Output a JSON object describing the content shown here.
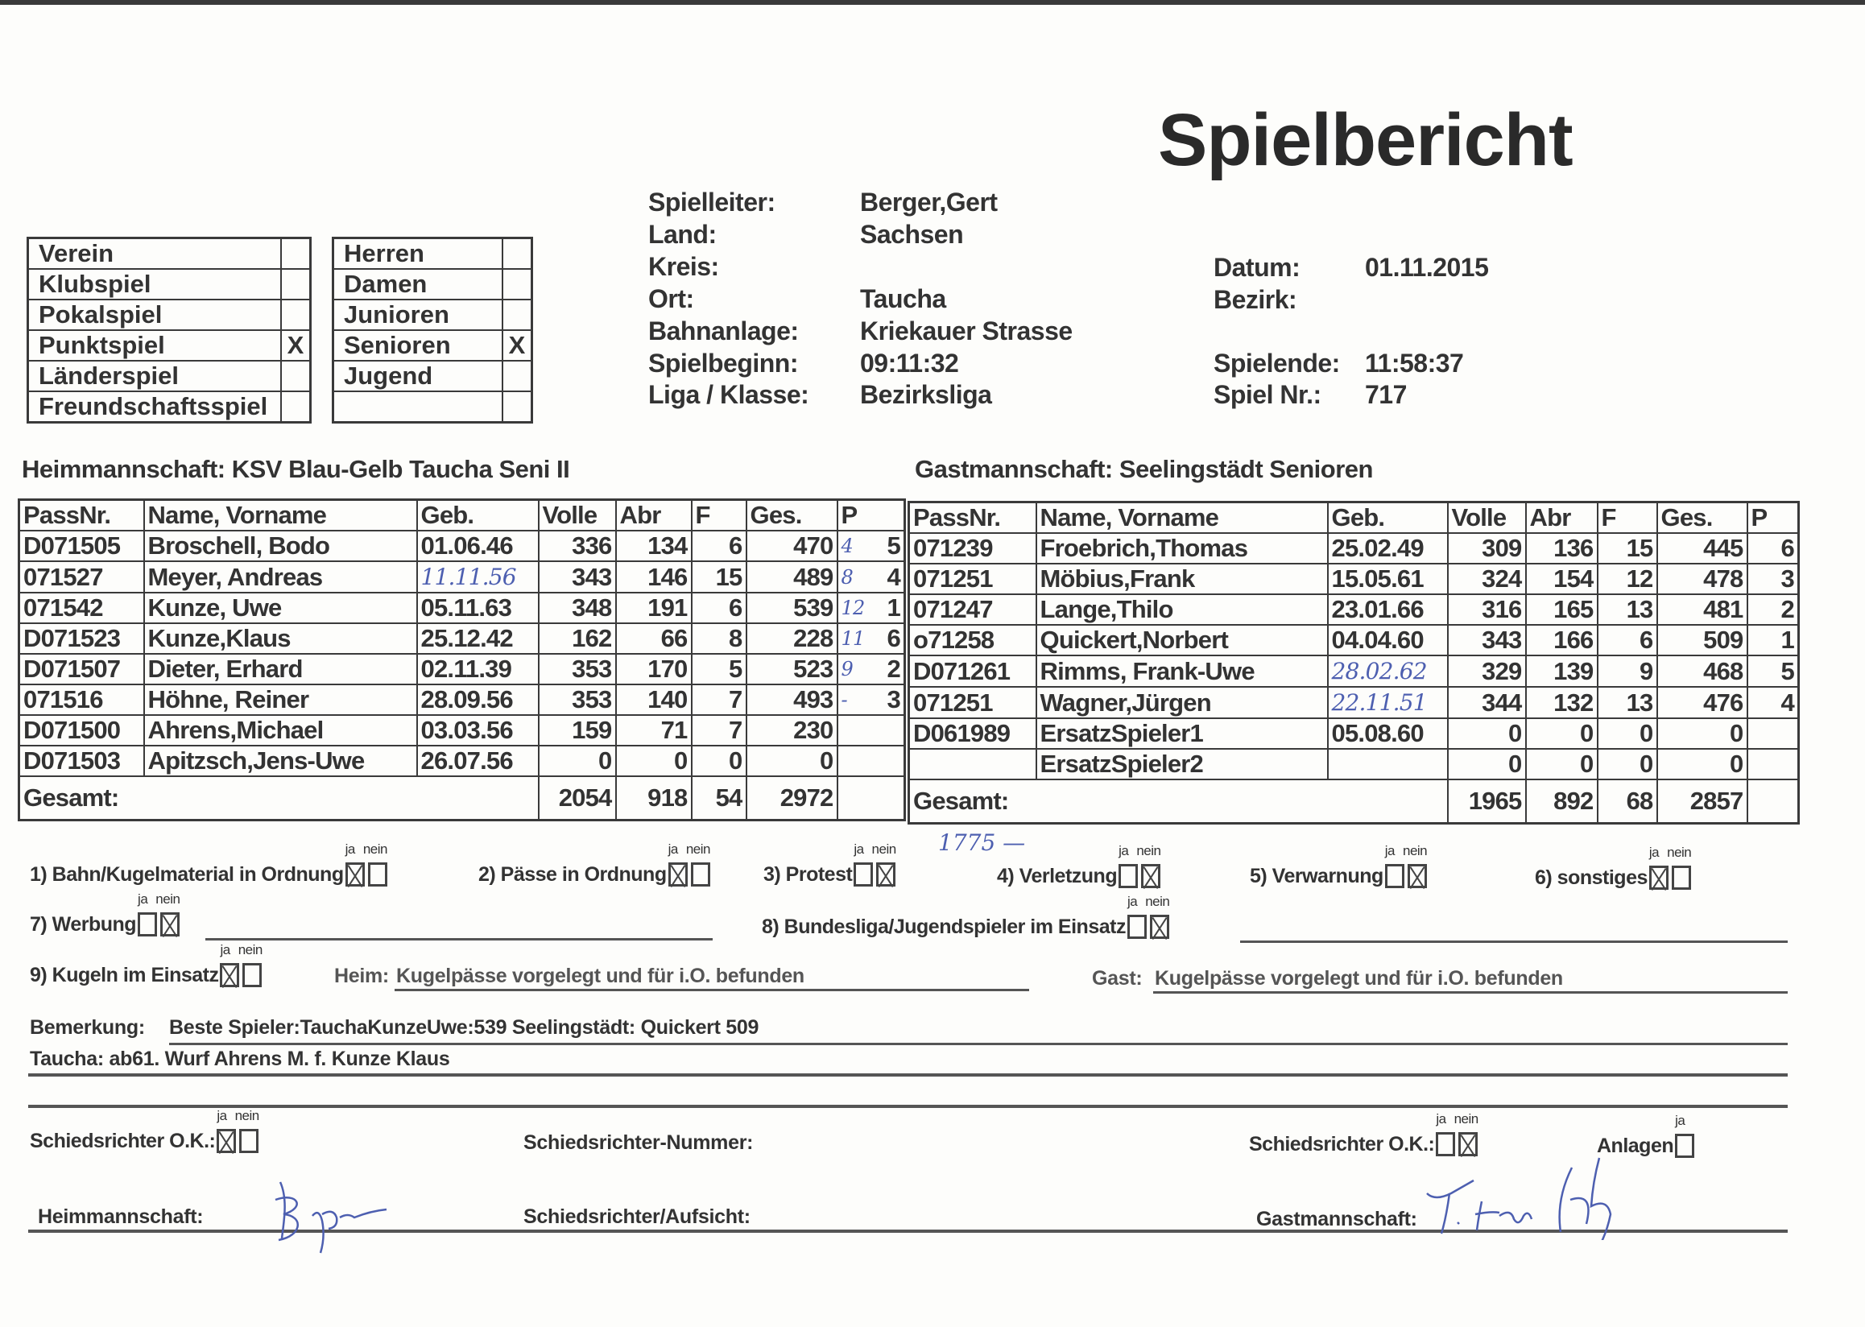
{
  "title": "Spielbericht",
  "info_left": [
    {
      "label": "Spielleiter:",
      "value": "Berger,Gert"
    },
    {
      "label": "Land:",
      "value": "Sachsen"
    },
    {
      "label": "Kreis:",
      "value": ""
    },
    {
      "label": "Ort:",
      "value": "Taucha"
    },
    {
      "label": "Bahnanlage:",
      "value": "Kriekauer Strasse"
    },
    {
      "label": "Spielbeginn:",
      "value": "09:11:32"
    },
    {
      "label": "Liga / Klasse:",
      "value": "Bezirksliga"
    }
  ],
  "info_right": {
    "datum_label": "Datum:",
    "datum": "01.11.2015",
    "bezirk_label": "Bezirk:",
    "bezirk": "",
    "spielende_label": "Spielende:",
    "spielende": "11:58:37",
    "spielnr_label": "Spiel Nr.:",
    "spielnr": "717"
  },
  "type_box": [
    {
      "label": "Verein",
      "mark": ""
    },
    {
      "label": "Klubspiel",
      "mark": ""
    },
    {
      "label": "Pokalspiel",
      "mark": ""
    },
    {
      "label": "Punktspiel",
      "mark": "X"
    },
    {
      "label": "Länderspiel",
      "mark": ""
    },
    {
      "label": "Freundschaftsspiel",
      "mark": ""
    }
  ],
  "class_box": [
    {
      "label": "Herren",
      "mark": ""
    },
    {
      "label": "Damen",
      "mark": ""
    },
    {
      "label": "Junioren",
      "mark": ""
    },
    {
      "label": "Senioren",
      "mark": "X"
    },
    {
      "label": "Jugend",
      "mark": ""
    },
    {
      "label": "",
      "mark": ""
    }
  ],
  "home": {
    "label": "Heimmannschaft:",
    "name": "KSV Blau-Gelb Taucha Seni II",
    "headers": [
      "PassNr.",
      "Name, Vorname",
      "Geb.",
      "Volle",
      "Abr",
      "F",
      "Ges.",
      "P"
    ],
    "rows": [
      [
        "D071505",
        "Broschell, Bodo",
        "01.06.46",
        "336",
        "134",
        "6",
        "470",
        "5"
      ],
      [
        "071527",
        "Meyer, Andreas",
        "",
        "343",
        "146",
        "15",
        "489",
        "4"
      ],
      [
        "071542",
        "Kunze, Uwe",
        "05.11.63",
        "348",
        "191",
        "6",
        "539",
        "1"
      ],
      [
        "D071523",
        "Kunze,Klaus",
        "25.12.42",
        "162",
        "66",
        "8",
        "228",
        "6"
      ],
      [
        "D071507",
        "Dieter, Erhard",
        "02.11.39",
        "353",
        "170",
        "5",
        "523",
        "2"
      ],
      [
        "071516",
        "Höhne, Reiner",
        "28.09.56",
        "353",
        "140",
        "7",
        "493",
        "3"
      ],
      [
        "D071500",
        "Ahrens,Michael",
        "03.03.56",
        "159",
        "71",
        "7",
        "230",
        ""
      ],
      [
        "D071503",
        "Apitzsch,Jens-Uwe",
        "26.07.56",
        "0",
        "0",
        "0",
        "0",
        ""
      ]
    ],
    "total_label": "Gesamt:",
    "totals": [
      "2054",
      "918",
      "54",
      "2972"
    ],
    "handwritten_geb": "11.11.56",
    "handwritten_p": [
      "4",
      "8",
      "12",
      "11",
      "9",
      "-"
    ]
  },
  "guest": {
    "label": "Gastmannschaft:",
    "name": "Seelingstädt Senioren",
    "headers": [
      "PassNr.",
      "Name, Vorname",
      "Geb.",
      "Volle",
      "Abr",
      "F",
      "Ges.",
      "P"
    ],
    "rows": [
      [
        "071239",
        "Froebrich,Thomas",
        "25.02.49",
        "309",
        "136",
        "15",
        "445",
        "6"
      ],
      [
        "071251",
        "Möbius,Frank",
        "15.05.61",
        "324",
        "154",
        "12",
        "478",
        "3"
      ],
      [
        "071247",
        "Lange,Thilo",
        "23.01.66",
        "316",
        "165",
        "13",
        "481",
        "2"
      ],
      [
        "o71258",
        "Quickert,Norbert",
        "04.04.60",
        "343",
        "166",
        "6",
        "509",
        "1"
      ],
      [
        "D071261",
        "Rimms, Frank-Uwe",
        "",
        "329",
        "139",
        "9",
        "468",
        "5"
      ],
      [
        "071251",
        "Wagner,Jürgen",
        "",
        "344",
        "132",
        "13",
        "476",
        "4"
      ],
      [
        "D061989",
        "ErsatzSpieler1",
        "05.08.60",
        "0",
        "0",
        "0",
        "0",
        ""
      ],
      [
        "",
        "ErsatzSpieler2",
        "",
        "0",
        "0",
        "0",
        "0",
        ""
      ]
    ],
    "total_label": "Gesamt:",
    "totals": [
      "1965",
      "892",
      "68",
      "2857"
    ],
    "handwritten_geb": [
      "28.02.62",
      "22.11.51"
    ]
  },
  "checks": {
    "ja": "ja",
    "nein": "nein",
    "items": [
      {
        "label": "1) Bahn/Kugelmaterial in Ordnung",
        "ja": true,
        "nein": false
      },
      {
        "label": "2) Pässe in Ordnung",
        "ja": true,
        "nein": false
      },
      {
        "label": "3) Protest",
        "ja": false,
        "nein": true
      },
      {
        "label": "4) Verletzung",
        "ja": false,
        "nein": true
      },
      {
        "label": "5) Verwarnung",
        "ja": false,
        "nein": true
      },
      {
        "label": "6) sonstiges",
        "ja": true,
        "nein": false
      },
      {
        "label": "7) Werbung",
        "ja": false,
        "nein": true
      },
      {
        "label": "8) Bundesliga/Jugendspieler im Einsatz",
        "ja": false,
        "nein": true
      },
      {
        "label": "9) Kugeln im Einsatz",
        "ja": true,
        "nein": false
      }
    ],
    "handwritten_note": "1775 —"
  },
  "kugel": {
    "heim_label": "Heim:",
    "heim_value": "Kugelpässe vorgelegt und für i.O. befunden",
    "gast_label": "Gast:",
    "gast_value": "Kugelpässe vorgelegt und für i.O. befunden"
  },
  "remarks": {
    "label": "Bemerkung:",
    "line1": "Beste Spieler:TauchaKunzeUwe:539 Seelingstädt: Quickert 509",
    "line2": "Taucha: ab61. Wurf Ahrens M.   f. Kunze Klaus"
  },
  "footer": {
    "ref_ok_label": "Schiedsrichter O.K.:",
    "ref_ok_home": {
      "ja": true,
      "nein": false
    },
    "ref_number_label": "Schiedsrichter-Nummer:",
    "ref_ok_guest": {
      "ja": false,
      "nein": true
    },
    "anlagen_label": "Anlagen",
    "anlagen": false,
    "home_sig_label": "Heimmannschaft:",
    "ref_sig_label": "Schiedsrichter/Aufsicht:",
    "guest_sig_label": "Gastmannschaft:"
  },
  "colors": {
    "ink": "#333333",
    "pen": "#4d5fb0",
    "paper": "#fdfdfb"
  }
}
